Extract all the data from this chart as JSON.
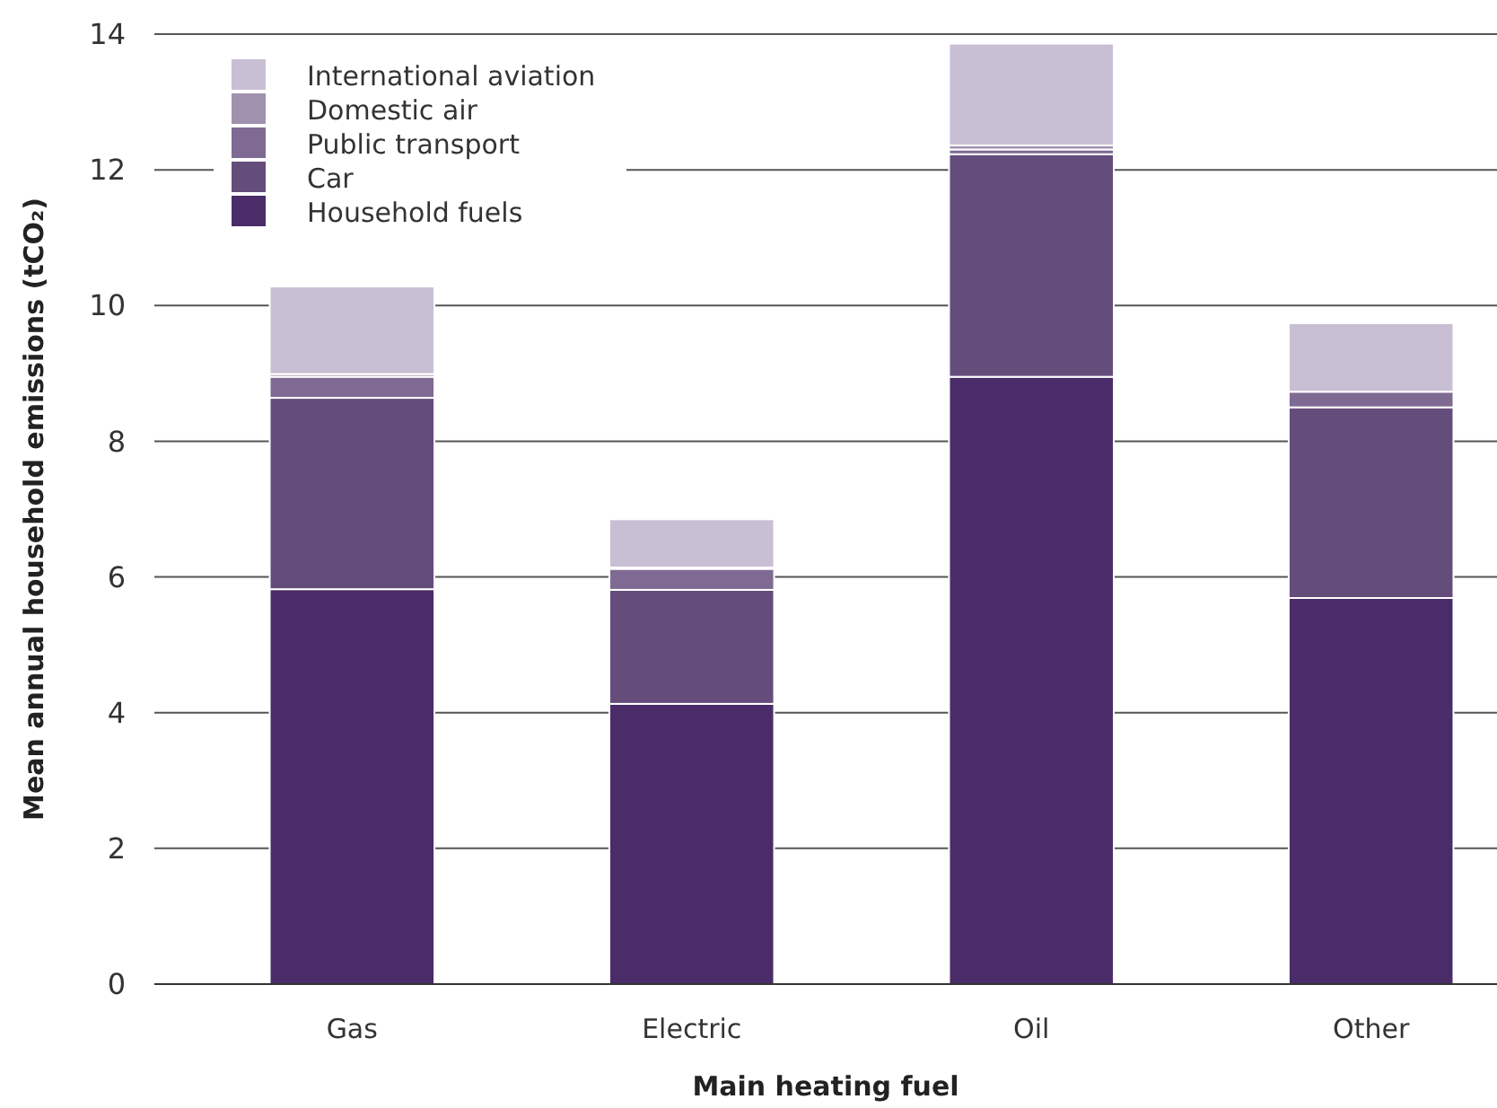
{
  "chart_data": {
    "type": "bar",
    "stacked": true,
    "xlabel": "Main heating fuel",
    "ylabel": "Mean annual household emissions (tCO₂)",
    "categories": [
      "Gas",
      "Electric",
      "Oil",
      "Other"
    ],
    "series": [
      {
        "name": "Household fuels",
        "color": "#4a2c68",
        "values": [
          5.82,
          4.13,
          8.95,
          5.69
        ]
      },
      {
        "name": "Car",
        "color": "#644d7b",
        "values": [
          2.82,
          1.68,
          3.28,
          2.81
        ]
      },
      {
        "name": "Public transport",
        "color": "#7f6a93",
        "values": [
          0.31,
          0.31,
          0.07,
          0.23
        ]
      },
      {
        "name": "Domestic air",
        "color": "#a092ae",
        "values": [
          0.04,
          0.02,
          0.06,
          null
        ]
      },
      {
        "name": "International aviation",
        "color": "#c9bfd4",
        "values": [
          1.29,
          0.71,
          1.5,
          1.01
        ]
      }
    ],
    "ylim": [
      0,
      14
    ],
    "yticks": [
      0,
      2,
      4,
      6,
      8,
      10,
      12,
      14
    ],
    "grid": "y",
    "legend": "top left"
  }
}
